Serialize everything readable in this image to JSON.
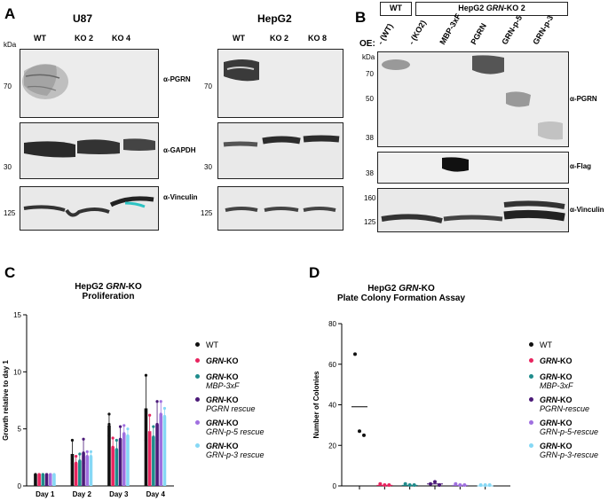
{
  "panelA": {
    "letter": "A",
    "u87": {
      "title": "U87",
      "kda": "kDa",
      "lanes": [
        "WT",
        "KO 2",
        "KO 4"
      ],
      "blots": [
        {
          "marker": "70",
          "antibody": "α-PGRN"
        },
        {
          "marker": "30",
          "antibody": "α-GAPDH"
        },
        {
          "marker": "125",
          "antibody": "α-Vinculin"
        }
      ]
    },
    "hepg2": {
      "title": "HepG2",
      "lanes": [
        "WT",
        "KO 2",
        "KO 8"
      ],
      "markers": [
        "70",
        "30",
        "125"
      ]
    }
  },
  "panelB": {
    "letter": "B",
    "wt_box": "WT",
    "ko_box_prefix": "HepG2 ",
    "ko_box_gene": "GRN",
    "ko_box_suffix": "-KO 2",
    "oe": "OE:",
    "kda": "kDa",
    "lanes": [
      "- (WT)",
      "- (KO2)",
      "MBP-3xF",
      "PGRN",
      "GRN-p-5",
      "GRN-p-3"
    ],
    "markers_pgrn": [
      "70",
      "50",
      "38"
    ],
    "marker_flag": "38",
    "markers_vinc": [
      "160",
      "125"
    ],
    "antibodies": [
      "α-PGRN",
      "α-Flag",
      "α-Vinculin"
    ]
  },
  "panelC": {
    "letter": "C",
    "title_prefix": "HepG2 ",
    "title_gene": "GRN",
    "title_suffix": "-KO",
    "title_line2": "Proliferation",
    "legend": [
      {
        "name": "WT",
        "sub": "",
        "bold": "",
        "rest": "WT",
        "color": "#111111"
      },
      {
        "name": "GRN-KO",
        "bold": "GRN",
        "rest": "-KO",
        "sub": "",
        "color": "#e8245f"
      },
      {
        "name": "GRN-KO MBP-3xF",
        "bold": "GRN",
        "rest": "-KO",
        "sub": "MBP-3xF",
        "color": "#1f8c8c"
      },
      {
        "name": "GRN-KO PGRN rescue",
        "bold": "GRN",
        "rest": "-KO",
        "sub": "PGRN rescue",
        "color": "#4b1a78"
      },
      {
        "name": "GRN-KO GRN-p-5 rescue",
        "bold": "GRN",
        "rest": "-KO",
        "sub": "GRN-p-5 rescue",
        "color": "#a070e0"
      },
      {
        "name": "GRN-KO GRN-p-3 rescue",
        "bold": "GRN",
        "rest": "-KO",
        "sub": "GRN-p-3 rescue",
        "color": "#86d8f5"
      }
    ]
  },
  "panelD": {
    "letter": "D",
    "title_prefix": "HepG2 ",
    "title_gene": "GRN",
    "title_suffix": "-KO",
    "title_line2": "Plate Colony Formation Assay",
    "legend": [
      {
        "bold": "",
        "rest": "WT",
        "sub": "",
        "color": "#111111"
      },
      {
        "bold": "GRN",
        "rest": "-KO",
        "sub": "",
        "color": "#e8245f"
      },
      {
        "bold": "GRN",
        "rest": "-KO",
        "sub": "MBP-3xF",
        "color": "#1f8c8c"
      },
      {
        "bold": "GRN",
        "rest": "-KO",
        "sub": "PGRN-rescue",
        "color": "#4b1a78"
      },
      {
        "bold": "GRN",
        "rest": "-KO",
        "sub": "GRN-p-5-rescue",
        "color": "#a070e0"
      },
      {
        "bold": "GRN",
        "rest": "-KO",
        "sub": "GRN-p-3-rescue",
        "color": "#86d8f5"
      }
    ]
  },
  "chart_data": [
    {
      "type": "bar",
      "ylabel": "Growth relative to day 1",
      "categories": [
        "Day 1",
        "Day 2",
        "Day 3",
        "Day 4"
      ],
      "ylim": [
        0,
        15
      ],
      "yticks": [
        0,
        5,
        10,
        15
      ],
      "series": [
        {
          "name": "WT",
          "values": [
            1.0,
            2.8,
            5.3,
            6.8
          ],
          "err": [
            0.05,
            1.2,
            1.0,
            3.0
          ]
        },
        {
          "name": "GRN-KO",
          "values": [
            1.0,
            2.0,
            3.4,
            4.8
          ],
          "err": [
            0.05,
            0.7,
            0.8,
            1.5
          ]
        },
        {
          "name": "GRN-KO MBP-3xF",
          "values": [
            1.0,
            2.2,
            3.2,
            4.3
          ],
          "err": [
            0.05,
            0.6,
            0.8,
            0.9
          ]
        },
        {
          "name": "GRN-KO PGRN rescue",
          "values": [
            1.0,
            2.9,
            4.1,
            5.4
          ],
          "err": [
            0.05,
            1.2,
            1.2,
            2.1
          ]
        },
        {
          "name": "GRN-KO GRN-p-5 rescue",
          "values": [
            1.0,
            2.6,
            4.6,
            6.3
          ],
          "err": [
            0.05,
            0.4,
            0.8,
            1.2
          ]
        },
        {
          "name": "GRN-KO GRN-p-3 rescue",
          "values": [
            1.0,
            2.6,
            4.4,
            6.1
          ],
          "err": [
            0.05,
            0.4,
            0.6,
            0.7
          ]
        }
      ],
      "points": [
        [
          [
            1,
            1,
            1
          ],
          [
            2.0,
            2.3,
            4.0
          ],
          [
            4.4,
            5.4,
            6.3
          ],
          [
            4.0,
            6.6,
            9.7
          ]
        ],
        [
          [
            1,
            1,
            1
          ],
          [
            1.6,
            2.0,
            2.6
          ],
          [
            2.7,
            3.4,
            4.2
          ],
          [
            4.0,
            4.6,
            6.2
          ]
        ],
        [
          [
            1,
            1,
            1
          ],
          [
            1.7,
            2.2,
            2.8
          ],
          [
            2.6,
            3.2,
            4.0
          ],
          [
            3.5,
            4.3,
            5.2
          ]
        ],
        [
          [
            1,
            1,
            1
          ],
          [
            2.0,
            2.9,
            4.1
          ],
          [
            3.2,
            4.1,
            5.2
          ],
          [
            4.0,
            5.4,
            7.4
          ]
        ],
        [
          [
            1,
            1,
            1
          ],
          [
            2.2,
            2.6,
            3.0
          ],
          [
            4.0,
            4.6,
            5.3
          ],
          [
            5.2,
            6.3,
            7.4
          ]
        ],
        [
          [
            1,
            1,
            1
          ],
          [
            2.2,
            2.6,
            3.0
          ],
          [
            4.0,
            4.4,
            5.0
          ],
          [
            5.6,
            6.1,
            6.8
          ]
        ]
      ]
    },
    {
      "type": "scatter",
      "ylabel": "Number of Colonies",
      "ylim": [
        0,
        80
      ],
      "yticks": [
        0,
        20,
        40,
        60,
        80
      ],
      "series": [
        {
          "name": "WT",
          "values": [
            65,
            27,
            25
          ],
          "mean": 39
        },
        {
          "name": "GRN-KO",
          "values": [
            1,
            0,
            0
          ],
          "mean": 0.3
        },
        {
          "name": "GRN-KO MBP-3xF",
          "values": [
            1,
            0,
            0
          ],
          "mean": 0.3
        },
        {
          "name": "GRN-KO PGRN-rescue",
          "values": [
            1,
            2,
            0
          ],
          "mean": 1
        },
        {
          "name": "GRN-KO GRN-p-5-rescue",
          "values": [
            1,
            0,
            0
          ],
          "mean": 0.3
        },
        {
          "name": "GRN-KO GRN-p-3-rescue",
          "values": [
            0,
            0,
            0
          ],
          "mean": 0
        }
      ]
    }
  ]
}
